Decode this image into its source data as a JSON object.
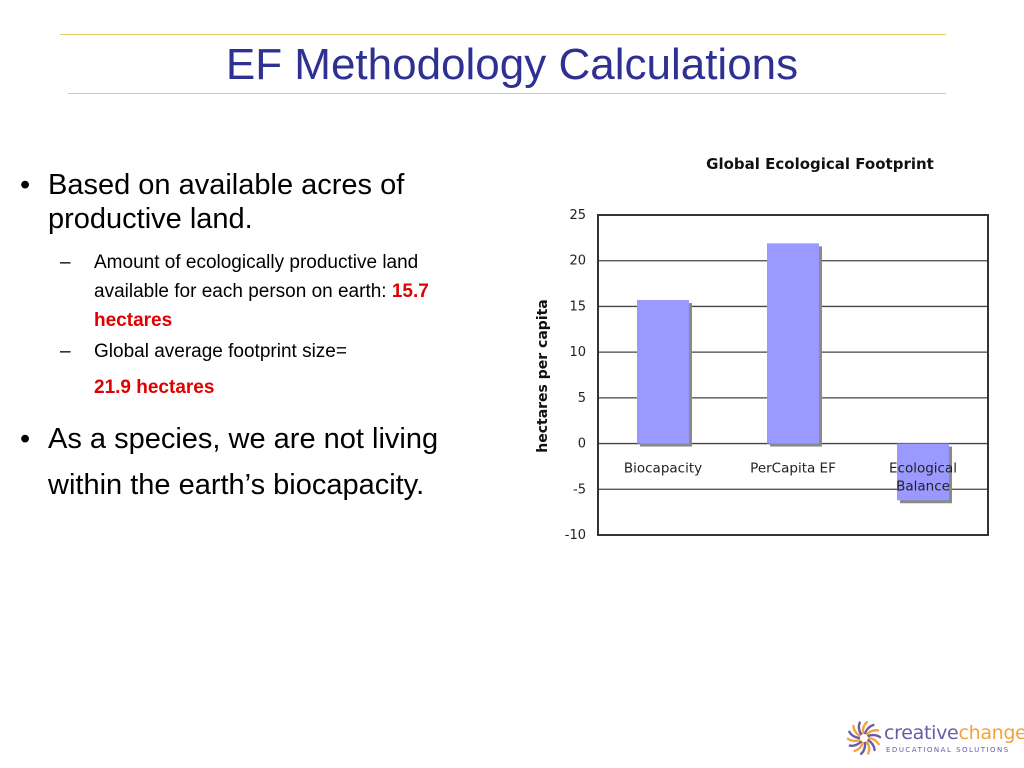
{
  "slide": {
    "title": "EF Methodology Calculations",
    "bullets": [
      {
        "text": "Based on available acres of productive land."
      },
      {
        "text": "As a species, we are not living within the earth’s biocapacity."
      }
    ],
    "subbullets": [
      {
        "text": "Amount of ecologically productive land available for each person on earth: ",
        "highlight": "15.7 hectares"
      },
      {
        "text": "Global average footprint size=",
        "highlight": "21.9 hectares"
      }
    ]
  },
  "chart_data": {
    "type": "bar",
    "title": "Global Ecological Footprint",
    "ylabel": "hectares per capita",
    "xlabel": "",
    "categories": [
      "Biocapacity",
      "PerCapita EF",
      "Ecological Balance"
    ],
    "values": [
      15.7,
      21.9,
      -6.2
    ],
    "ylim": [
      -10,
      25
    ],
    "yticks": [
      25,
      20,
      15,
      10,
      5,
      0,
      -5,
      -10
    ],
    "grid": true,
    "bar_color": "#9999ff",
    "shadow_color": "#8a8a8a"
  },
  "logo": {
    "name_part1": "creative",
    "name_part2": "change",
    "tagline": "EDUCATIONAL SOLUTIONS",
    "color_primary": "#6b5aa8",
    "color_accent": "#f2a33a"
  }
}
